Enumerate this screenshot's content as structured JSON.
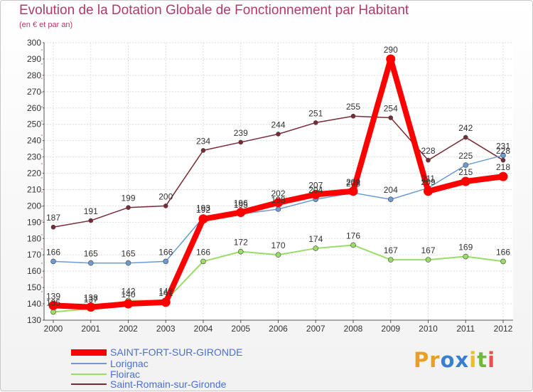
{
  "chart_data": {
    "type": "line",
    "title": "Evolution de la Dotation Globale de Fonctionnement par Habitant",
    "subtitle": "(en € et par an)",
    "xlabel": "",
    "ylabel": "",
    "x": [
      "2000",
      "2001",
      "2002",
      "2003",
      "2004",
      "2005",
      "2006",
      "2007",
      "2008",
      "2009",
      "2010",
      "2011",
      "2012"
    ],
    "ylim": [
      130,
      300
    ],
    "yticks": [
      130,
      140,
      150,
      160,
      170,
      180,
      190,
      200,
      210,
      220,
      230,
      240,
      250,
      260,
      270,
      280,
      290,
      300
    ],
    "grid": true,
    "legend_position": "bottom-left",
    "series": [
      {
        "name": "SAINT-FORT-SUR-GIRONDE",
        "color": "#ff0000",
        "values": [
          139,
          138,
          140,
          141,
          192,
          196,
          202,
          207,
          209,
          290,
          209,
          215,
          218
        ]
      },
      {
        "name": "Lorignac",
        "color": "#6b9bd2",
        "values": [
          166,
          165,
          165,
          166,
          193,
          195,
          198,
          204,
          208,
          204,
          211,
          225,
          231
        ]
      },
      {
        "name": "Floirac",
        "color": "#99dd66",
        "values": [
          135,
          137,
          142,
          142,
          166,
          172,
          170,
          174,
          176,
          167,
          167,
          169,
          166
        ]
      },
      {
        "name": "Saint-Romain-sur-Gironde",
        "color": "#7a2a35",
        "values": [
          187,
          191,
          199,
          200,
          234,
          239,
          244,
          251,
          255,
          254,
          228,
          242,
          228
        ]
      }
    ]
  },
  "logo": {
    "letters": [
      "P",
      "r",
      "o",
      "x",
      "i",
      "t",
      "i"
    ],
    "colors": [
      "#e8a020",
      "#e8a020",
      "#3a7fd0",
      "#3a7fd0",
      "#e8c020",
      "#70b840",
      "#e85050"
    ]
  }
}
